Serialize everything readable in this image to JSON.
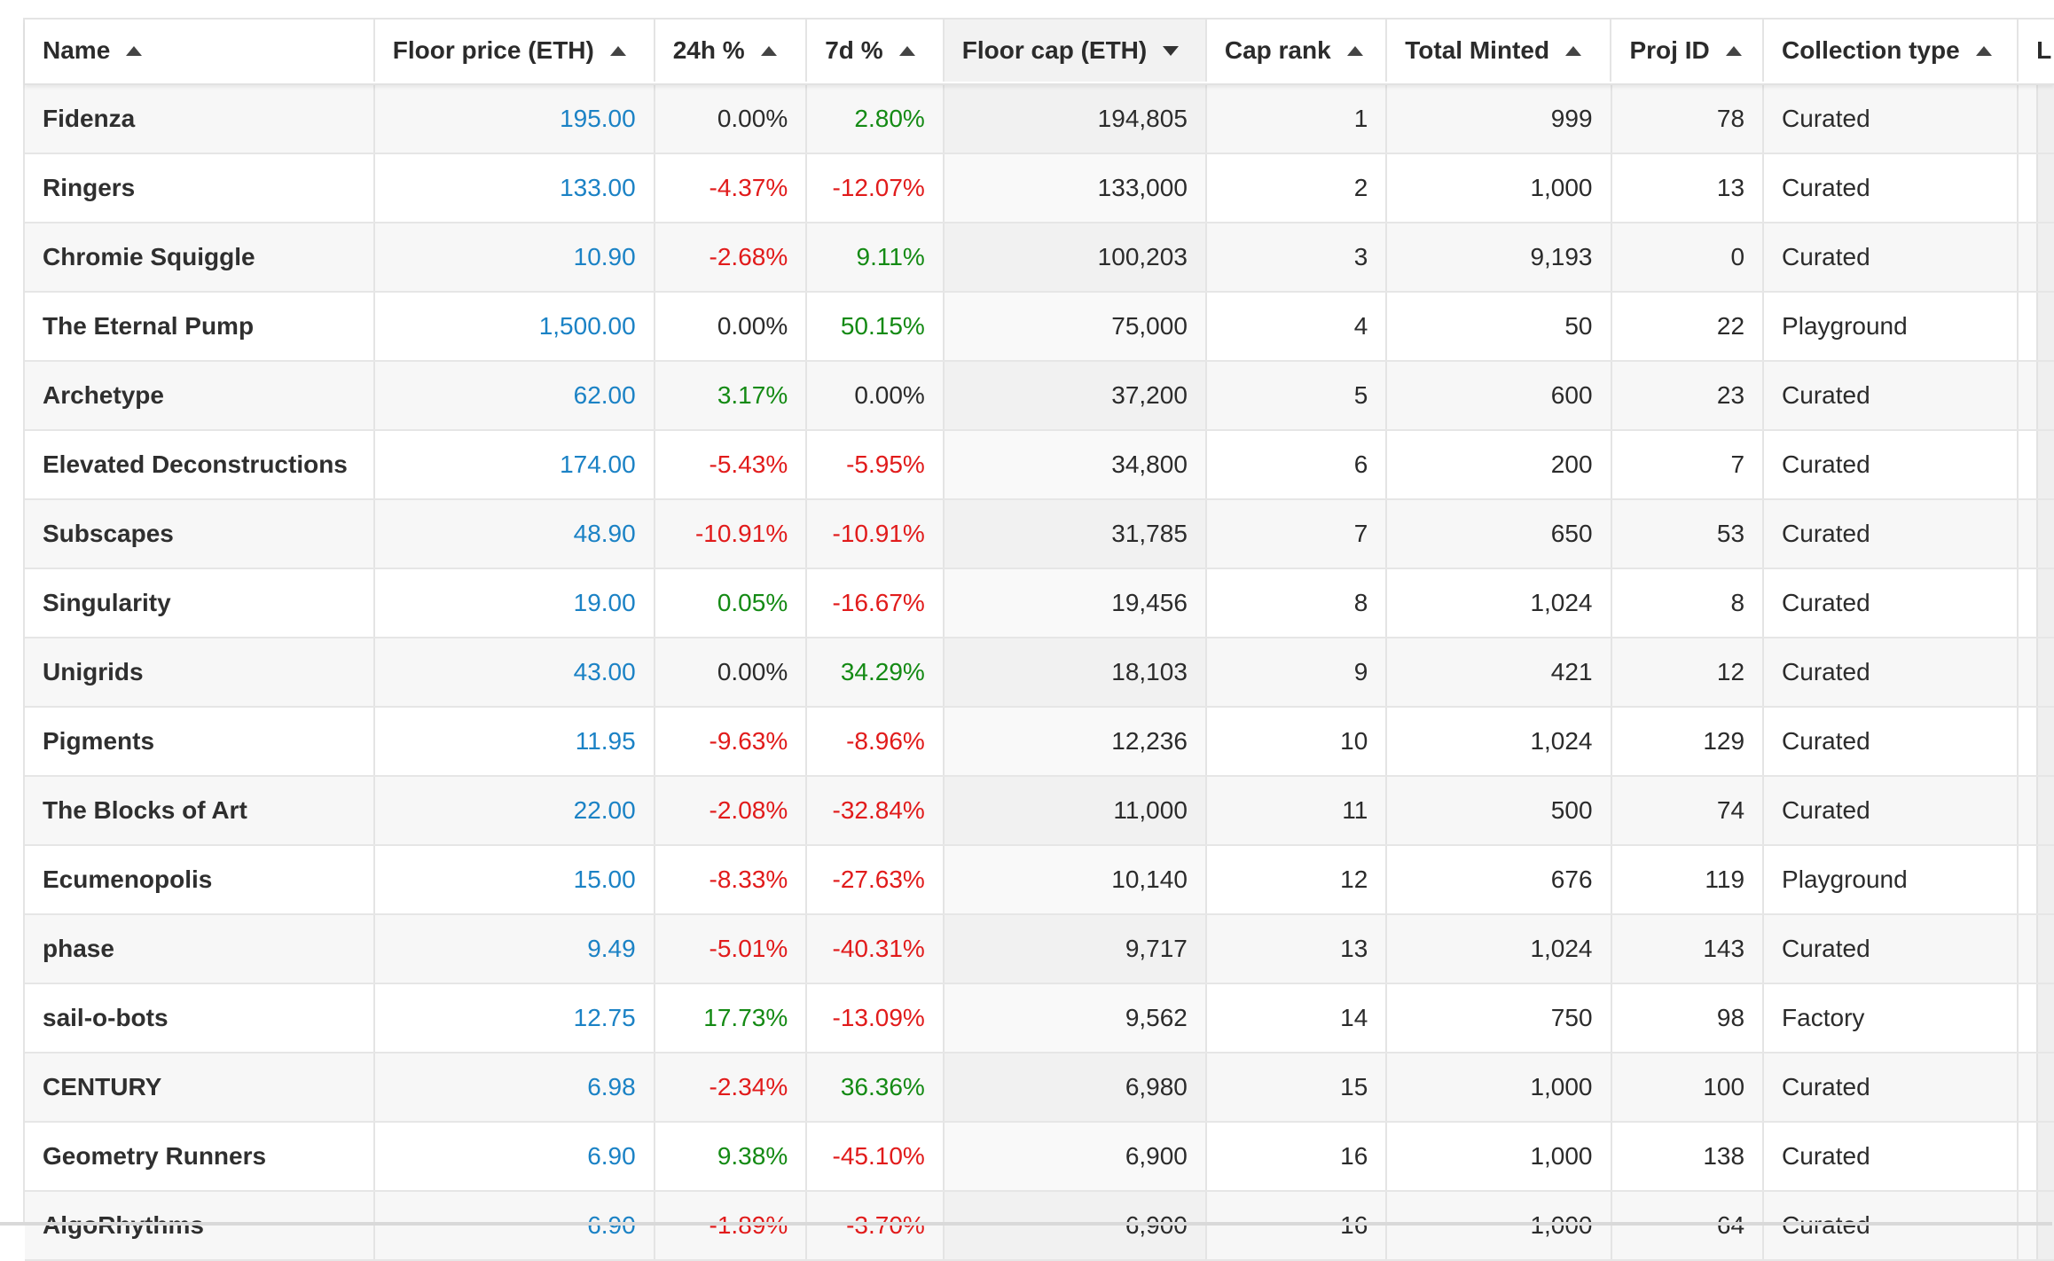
{
  "columns": [
    {
      "label": "Name",
      "sort": "up"
    },
    {
      "label": "Floor price (ETH)",
      "sort": "up"
    },
    {
      "label": "24h %",
      "sort": "up"
    },
    {
      "label": "7d %",
      "sort": "up"
    },
    {
      "label": "Floor cap (ETH)",
      "sort": "down"
    },
    {
      "label": "Cap rank",
      "sort": "up"
    },
    {
      "label": "Total Minted",
      "sort": "up"
    },
    {
      "label": "Proj ID",
      "sort": "up"
    },
    {
      "label": "Collection type",
      "sort": "up"
    },
    {
      "label": "L",
      "sort": ""
    }
  ],
  "rows": [
    {
      "name": "Fidenza",
      "floor_price": "195.00",
      "change_24h": "0.00%",
      "change_7d": "2.80%",
      "floor_cap": "194,805",
      "cap_rank": "1",
      "total_minted": "999",
      "proj_id": "78",
      "collection_type": "Curated"
    },
    {
      "name": "Ringers",
      "floor_price": "133.00",
      "change_24h": "-4.37%",
      "change_7d": "-12.07%",
      "floor_cap": "133,000",
      "cap_rank": "2",
      "total_minted": "1,000",
      "proj_id": "13",
      "collection_type": "Curated"
    },
    {
      "name": "Chromie Squiggle",
      "floor_price": "10.90",
      "change_24h": "-2.68%",
      "change_7d": "9.11%",
      "floor_cap": "100,203",
      "cap_rank": "3",
      "total_minted": "9,193",
      "proj_id": "0",
      "collection_type": "Curated"
    },
    {
      "name": "The Eternal Pump",
      "floor_price": "1,500.00",
      "change_24h": "0.00%",
      "change_7d": "50.15%",
      "floor_cap": "75,000",
      "cap_rank": "4",
      "total_minted": "50",
      "proj_id": "22",
      "collection_type": "Playground"
    },
    {
      "name": "Archetype",
      "floor_price": "62.00",
      "change_24h": "3.17%",
      "change_7d": "0.00%",
      "floor_cap": "37,200",
      "cap_rank": "5",
      "total_minted": "600",
      "proj_id": "23",
      "collection_type": "Curated"
    },
    {
      "name": "Elevated Deconstructions",
      "floor_price": "174.00",
      "change_24h": "-5.43%",
      "change_7d": "-5.95%",
      "floor_cap": "34,800",
      "cap_rank": "6",
      "total_minted": "200",
      "proj_id": "7",
      "collection_type": "Curated"
    },
    {
      "name": "Subscapes",
      "floor_price": "48.90",
      "change_24h": "-10.91%",
      "change_7d": "-10.91%",
      "floor_cap": "31,785",
      "cap_rank": "7",
      "total_minted": "650",
      "proj_id": "53",
      "collection_type": "Curated"
    },
    {
      "name": "Singularity",
      "floor_price": "19.00",
      "change_24h": "0.05%",
      "change_7d": "-16.67%",
      "floor_cap": "19,456",
      "cap_rank": "8",
      "total_minted": "1,024",
      "proj_id": "8",
      "collection_type": "Curated"
    },
    {
      "name": "Unigrids",
      "floor_price": "43.00",
      "change_24h": "0.00%",
      "change_7d": "34.29%",
      "floor_cap": "18,103",
      "cap_rank": "9",
      "total_minted": "421",
      "proj_id": "12",
      "collection_type": "Curated"
    },
    {
      "name": "Pigments",
      "floor_price": "11.95",
      "change_24h": "-9.63%",
      "change_7d": "-8.96%",
      "floor_cap": "12,236",
      "cap_rank": "10",
      "total_minted": "1,024",
      "proj_id": "129",
      "collection_type": "Curated"
    },
    {
      "name": "The Blocks of Art",
      "floor_price": "22.00",
      "change_24h": "-2.08%",
      "change_7d": "-32.84%",
      "floor_cap": "11,000",
      "cap_rank": "11",
      "total_minted": "500",
      "proj_id": "74",
      "collection_type": "Curated"
    },
    {
      "name": "Ecumenopolis",
      "floor_price": "15.00",
      "change_24h": "-8.33%",
      "change_7d": "-27.63%",
      "floor_cap": "10,140",
      "cap_rank": "12",
      "total_minted": "676",
      "proj_id": "119",
      "collection_type": "Playground"
    },
    {
      "name": "phase",
      "floor_price": "9.49",
      "change_24h": "-5.01%",
      "change_7d": "-40.31%",
      "floor_cap": "9,717",
      "cap_rank": "13",
      "total_minted": "1,024",
      "proj_id": "143",
      "collection_type": "Curated"
    },
    {
      "name": "sail-o-bots",
      "floor_price": "12.75",
      "change_24h": "17.73%",
      "change_7d": "-13.09%",
      "floor_cap": "9,562",
      "cap_rank": "14",
      "total_minted": "750",
      "proj_id": "98",
      "collection_type": "Factory"
    },
    {
      "name": "CENTURY",
      "floor_price": "6.98",
      "change_24h": "-2.34%",
      "change_7d": "36.36%",
      "floor_cap": "6,980",
      "cap_rank": "15",
      "total_minted": "1,000",
      "proj_id": "100",
      "collection_type": "Curated"
    },
    {
      "name": "Geometry Runners",
      "floor_price": "6.90",
      "change_24h": "9.38%",
      "change_7d": "-45.10%",
      "floor_cap": "6,900",
      "cap_rank": "16",
      "total_minted": "1,000",
      "proj_id": "138",
      "collection_type": "Curated"
    },
    {
      "name": "AlgoRhythms",
      "floor_price": "6.90",
      "change_24h": "-1.89%",
      "change_7d": "-3.70%",
      "floor_cap": "6,900",
      "cap_rank": "16",
      "total_minted": "1,000",
      "proj_id": "64",
      "collection_type": "Curated"
    }
  ],
  "colors": {
    "price_link": "#1b82c5",
    "negative": "#e11b1b",
    "positive": "#148a14",
    "sorted_header_bg": "#f2f2f2"
  }
}
